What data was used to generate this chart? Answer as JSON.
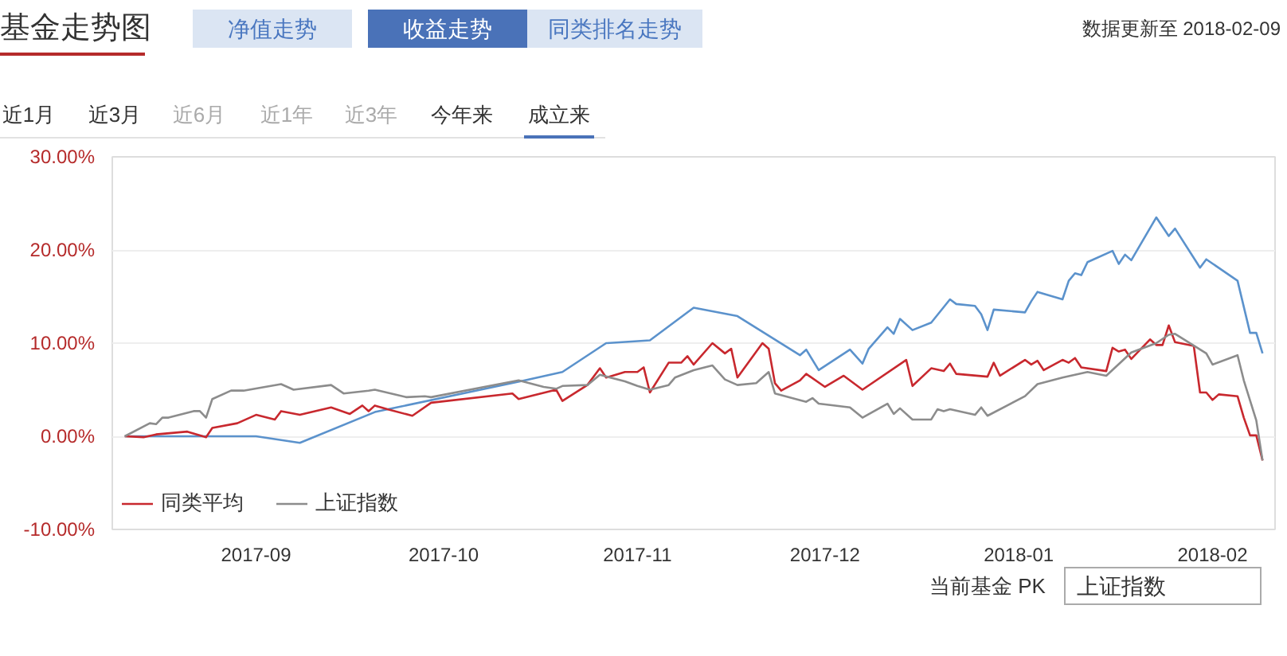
{
  "chart_data": {
    "type": "line",
    "title": "基金走势图",
    "subtitle": "数据更新至 2018-02-09",
    "annotations": [
      "净值走势",
      "收益走势",
      "同类排名走势",
      "近1月",
      "近3月",
      "近6月",
      "近1年",
      "近3年",
      "今年来",
      "成立来",
      "当前基金 PK",
      "上证指数"
    ],
    "xlim": [
      "2017-08-09",
      "2018-02-11"
    ],
    "xticks": [
      {
        "value": "2017-09-01",
        "label": "2017-09"
      },
      {
        "value": "2017-10-01",
        "label": "2017-10"
      },
      {
        "value": "2017-11-01",
        "label": "2017-11"
      },
      {
        "value": "2017-12-01",
        "label": "2017-12"
      },
      {
        "value": "2018-01-01",
        "label": "2018-01"
      },
      {
        "value": "2018-02-01",
        "label": "2018-02"
      }
    ],
    "ylim": [
      -10,
      30
    ],
    "yticks": [
      {
        "value": -10,
        "label": "-10.00%"
      },
      {
        "value": 0,
        "label": "0.00%"
      },
      {
        "value": 10,
        "label": "10.00%"
      },
      {
        "value": 20,
        "label": "20.00%"
      },
      {
        "value": 30,
        "label": "30.00%"
      }
    ],
    "grid": "y",
    "legend": "bottom",
    "series": [
      {
        "color": "#5b92cc",
        "x": [
          "2017-08-11",
          "2017-09-01",
          "2017-09-08",
          "2017-09-20",
          "2017-10-14",
          "2017-10-20",
          "2017-10-27",
          "2017-11-03",
          "2017-11-10",
          "2017-11-17",
          "2017-11-27",
          "2017-11-28",
          "2017-11-30",
          "2017-12-05",
          "2017-12-07",
          "2017-12-08",
          "2017-12-11",
          "2017-12-12",
          "2017-12-13",
          "2017-12-15",
          "2017-12-18",
          "2017-12-21",
          "2017-12-22",
          "2017-12-25",
          "2017-12-26",
          "2017-12-27",
          "2017-12-28",
          "2018-01-02",
          "2018-01-03",
          "2018-01-04",
          "2018-01-08",
          "2018-01-09",
          "2018-01-10",
          "2018-01-11",
          "2018-01-12",
          "2018-01-16",
          "2018-01-17",
          "2018-01-18",
          "2018-01-19",
          "2018-01-23",
          "2018-01-25",
          "2018-01-26",
          "2018-01-30",
          "2018-01-31",
          "2018-02-05",
          "2018-02-07",
          "2018-02-08",
          "2018-02-09"
        ],
        "values": [
          0,
          0,
          -0.7,
          2.6,
          6.0,
          6.9,
          10.0,
          10.3,
          13.8,
          12.9,
          8.7,
          9.3,
          7.1,
          9.3,
          7.8,
          9.4,
          11.7,
          11.0,
          12.6,
          11.4,
          12.2,
          14.7,
          14.2,
          14.0,
          13.1,
          11.4,
          13.6,
          13.3,
          14.5,
          15.5,
          14.7,
          16.7,
          17.5,
          17.3,
          18.7,
          19.9,
          18.5,
          19.5,
          18.9,
          23.5,
          21.5,
          22.3,
          18.1,
          19.0,
          16.7,
          11.1,
          11.1,
          8.9
        ]
      },
      {
        "name": "同类平均",
        "color": "#c8282e",
        "x": [
          "2017-08-11",
          "2017-08-14",
          "2017-08-16",
          "2017-08-21",
          "2017-08-24",
          "2017-08-25",
          "2017-08-29",
          "2017-09-01",
          "2017-09-04",
          "2017-09-05",
          "2017-09-08",
          "2017-09-13",
          "2017-09-16",
          "2017-09-18",
          "2017-09-19",
          "2017-09-20",
          "2017-09-22",
          "2017-09-26",
          "2017-09-29",
          "2017-10-12",
          "2017-10-13",
          "2017-10-19",
          "2017-10-20",
          "2017-10-24",
          "2017-10-26",
          "2017-10-27",
          "2017-10-30",
          "2017-11-01",
          "2017-11-02",
          "2017-11-03",
          "2017-11-06",
          "2017-11-08",
          "2017-11-09",
          "2017-11-10",
          "2017-11-13",
          "2017-11-15",
          "2017-11-16",
          "2017-11-17",
          "2017-11-21",
          "2017-11-22",
          "2017-11-23",
          "2017-11-24",
          "2017-11-27",
          "2017-11-28",
          "2017-12-01",
          "2017-12-04",
          "2017-12-07",
          "2017-12-14",
          "2017-12-15",
          "2017-12-18",
          "2017-12-20",
          "2017-12-21",
          "2017-12-22",
          "2017-12-27",
          "2017-12-28",
          "2017-12-29",
          "2018-01-02",
          "2018-01-03",
          "2018-01-04",
          "2018-01-05",
          "2018-01-08",
          "2018-01-09",
          "2018-01-10",
          "2018-01-11",
          "2018-01-15",
          "2018-01-16",
          "2018-01-17",
          "2018-01-18",
          "2018-01-19",
          "2018-01-22",
          "2018-01-23",
          "2018-01-24",
          "2018-01-25",
          "2018-01-26",
          "2018-01-29",
          "2018-01-30",
          "2018-01-31",
          "2018-02-01",
          "2018-02-02",
          "2018-02-05",
          "2018-02-06",
          "2018-02-07",
          "2018-02-08",
          "2018-02-09"
        ],
        "values": [
          0,
          -0.1,
          0.2,
          0.5,
          -0.1,
          0.9,
          1.4,
          2.3,
          1.8,
          2.7,
          2.3,
          3.1,
          2.4,
          3.3,
          2.7,
          3.3,
          2.9,
          2.2,
          3.6,
          4.6,
          4.0,
          5.0,
          3.8,
          5.5,
          7.3,
          6.3,
          6.9,
          6.9,
          7.4,
          4.7,
          7.9,
          7.9,
          8.6,
          7.7,
          10.0,
          8.9,
          9.4,
          6.3,
          10.0,
          9.4,
          5.7,
          4.9,
          6.0,
          6.7,
          5.3,
          6.5,
          5.0,
          8.2,
          5.4,
          7.3,
          7.0,
          7.8,
          6.7,
          6.4,
          7.9,
          6.5,
          8.2,
          7.7,
          8.1,
          7.1,
          8.2,
          7.9,
          8.4,
          7.4,
          7.0,
          9.5,
          9.1,
          9.3,
          8.3,
          10.4,
          9.8,
          9.8,
          11.9,
          10.1,
          9.7,
          4.7,
          4.7,
          3.9,
          4.5,
          4.3,
          2.0,
          0.1,
          0.1,
          -2.6
        ]
      },
      {
        "name": "上证指数",
        "color": "#8c8c8c",
        "x": [
          "2017-08-11",
          "2017-08-15",
          "2017-08-16",
          "2017-08-17",
          "2017-08-18",
          "2017-08-22",
          "2017-08-23",
          "2017-08-24",
          "2017-08-25",
          "2017-08-28",
          "2017-08-30",
          "2017-09-05",
          "2017-09-07",
          "2017-09-13",
          "2017-09-15",
          "2017-09-19",
          "2017-09-20",
          "2017-09-25",
          "2017-09-28",
          "2017-09-29",
          "2017-10-13",
          "2017-10-17",
          "2017-10-19",
          "2017-10-20",
          "2017-10-24",
          "2017-10-26",
          "2017-10-30",
          "2017-11-01",
          "2017-11-03",
          "2017-11-06",
          "2017-11-07",
          "2017-11-10",
          "2017-11-13",
          "2017-11-15",
          "2017-11-17",
          "2017-11-20",
          "2017-11-22",
          "2017-11-23",
          "2017-11-28",
          "2017-11-29",
          "2017-11-30",
          "2017-12-05",
          "2017-12-07",
          "2017-12-11",
          "2017-12-12",
          "2017-12-13",
          "2017-12-15",
          "2017-12-18",
          "2017-12-19",
          "2017-12-20",
          "2017-12-21",
          "2017-12-25",
          "2017-12-26",
          "2017-12-27",
          "2018-01-02",
          "2018-01-04",
          "2018-01-08",
          "2018-01-12",
          "2018-01-15",
          "2018-01-19",
          "2018-01-23",
          "2018-01-25",
          "2018-01-26",
          "2018-01-31",
          "2018-02-01",
          "2018-02-05",
          "2018-02-06",
          "2018-02-08",
          "2018-02-09"
        ],
        "values": [
          0,
          1.4,
          1.3,
          2.0,
          2.0,
          2.7,
          2.7,
          2.0,
          4.0,
          4.9,
          4.9,
          5.6,
          5.0,
          5.5,
          4.6,
          4.9,
          5.0,
          4.2,
          4.3,
          4.2,
          6.0,
          5.3,
          5.1,
          5.4,
          5.5,
          6.6,
          5.9,
          5.4,
          5.0,
          5.5,
          6.3,
          7.1,
          7.6,
          6.1,
          5.5,
          5.7,
          6.9,
          4.6,
          3.7,
          4.1,
          3.5,
          3.1,
          2.0,
          3.5,
          2.4,
          3.0,
          1.8,
          1.8,
          2.9,
          2.7,
          2.9,
          2.3,
          3.1,
          2.2,
          4.3,
          5.6,
          6.3,
          6.9,
          6.5,
          9.0,
          10.0,
          10.9,
          11.0,
          8.9,
          7.7,
          8.7,
          6.0,
          1.7,
          -2.6
        ]
      }
    ]
  }
}
